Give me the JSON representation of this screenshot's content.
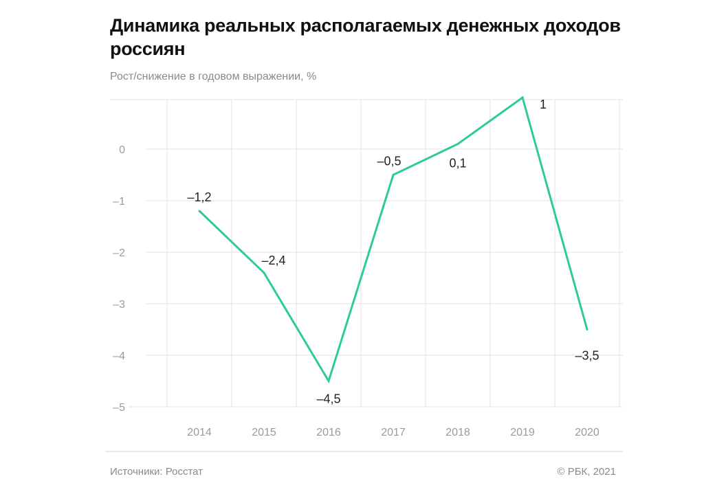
{
  "title": "Динамика реальных располагаемых денежных доходов россиян",
  "footer": {
    "source": "Источники: Росстат",
    "copyright": "© РБК, 2021"
  },
  "colors": {
    "line": "#2ecc8f",
    "grid": "#e2e2e2",
    "axis_text": "#9a9a9a",
    "label_text": "#222222"
  },
  "chart_data": {
    "type": "line",
    "title": "Динамика реальных располагаемых денежных доходов россиян",
    "subtitle": "Рост/снижение в годовом выражении, %",
    "xlabel": "",
    "ylabel": "Рост/снижение в годовом выражении, %",
    "categories": [
      "2014",
      "2015",
      "2016",
      "2017",
      "2018",
      "2019",
      "2020"
    ],
    "values": [
      -1.2,
      -2.4,
      -4.5,
      -0.5,
      0.1,
      1,
      -3.5
    ],
    "data_labels": [
      "–1,2",
      "–2,4",
      "–4,5",
      "–0,5",
      "0,1",
      "1",
      "–3,5"
    ],
    "yticks": [
      0,
      -1,
      -2,
      -3,
      -4,
      -5
    ],
    "ytick_labels": [
      "0",
      "–1",
      "–2",
      "–3",
      "–4",
      "–5"
    ],
    "ylim": [
      -5,
      1
    ],
    "grid": true,
    "legend": "none"
  }
}
